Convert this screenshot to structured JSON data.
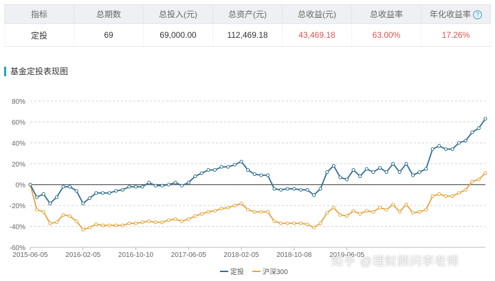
{
  "summary_table": {
    "headers": [
      "指标",
      "总期数",
      "总投入(元)",
      "总资产(元)",
      "总收益(元)",
      "总收益率",
      "年化收益率"
    ],
    "row": [
      "定投",
      "69",
      "69,000.00",
      "112,469.18",
      "43,469.18",
      "63.00%",
      "17.26%"
    ],
    "help_icon": "question-circle-icon",
    "help_glyph": "?"
  },
  "section_title": "基金定投表现图",
  "watermark": "知乎 @理财顾问李老师",
  "chart_data": {
    "type": "line",
    "title": "",
    "xlabel": "",
    "ylabel": "",
    "ylim": [
      -60,
      80
    ],
    "yticks": [
      -60,
      -40,
      -20,
      0,
      20,
      40,
      60,
      80
    ],
    "ytick_labels": [
      "-60%",
      "-40%",
      "-20%",
      "0%",
      "20%",
      "40%",
      "60%",
      "80%"
    ],
    "xtick_labels": [
      "2015-06-05",
      "2016-02-05",
      "2016-10-10",
      "2017-06-05",
      "2018-02-05",
      "2018-10-08",
      "2019-06-05"
    ],
    "xtick_index": [
      0,
      8,
      16,
      24,
      32,
      40,
      48
    ],
    "grid": true,
    "legend_position": "bottom-center",
    "series": [
      {
        "name": "定投",
        "color": "#2f6f8f",
        "values": [
          0,
          -12,
          -9,
          -18,
          -12,
          -2,
          -2,
          -6,
          -18,
          -13,
          -8,
          -8,
          -8,
          -6,
          -5,
          -2,
          -2,
          -2,
          2,
          -1,
          -1,
          0,
          2,
          -1,
          2,
          8,
          11,
          14,
          14,
          17,
          17,
          19,
          22,
          14,
          10,
          9,
          9,
          -4,
          -5,
          -4,
          -4,
          -5,
          -5,
          -10,
          -4,
          12,
          18,
          7,
          5,
          14,
          8,
          15,
          12,
          16,
          12,
          20,
          12,
          20,
          9,
          12,
          15,
          34,
          37,
          34,
          34,
          40,
          42,
          50,
          54,
          63
        ]
      },
      {
        "name": "沪深300",
        "color": "#e7a43a",
        "values": [
          0,
          -24,
          -26,
          -37,
          -36,
          -29,
          -30,
          -35,
          -43,
          -41,
          -38,
          -39,
          -39,
          -39,
          -39,
          -37,
          -37,
          -36,
          -35,
          -36,
          -36,
          -34,
          -33,
          -35,
          -33,
          -30,
          -28,
          -26,
          -25,
          -23,
          -22,
          -20,
          -18,
          -24,
          -26,
          -26,
          -26,
          -35,
          -37,
          -37,
          -37,
          -37,
          -38,
          -41,
          -37,
          -27,
          -22,
          -29,
          -30,
          -25,
          -28,
          -25,
          -26,
          -22,
          -24,
          -19,
          -26,
          -19,
          -27,
          -26,
          -24,
          -11,
          -9,
          -11,
          -11,
          -8,
          -5,
          3,
          5,
          11
        ]
      }
    ]
  }
}
